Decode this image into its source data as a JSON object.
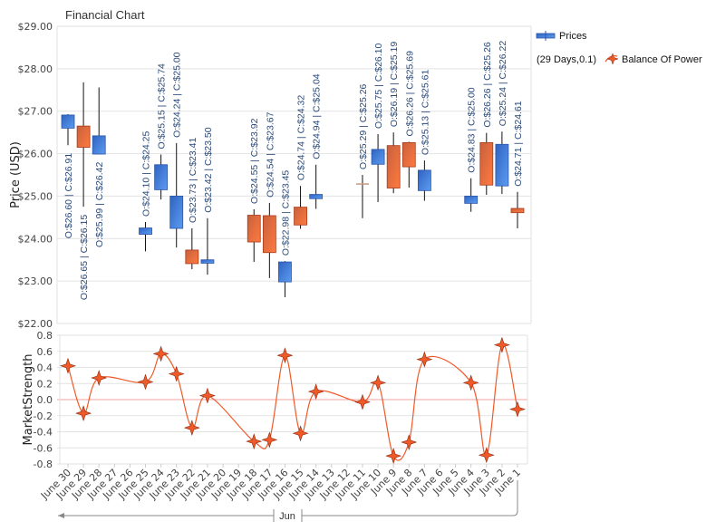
{
  "chart_data": [
    {
      "type": "candlestick",
      "title": "Financial Chart",
      "ylabel": "Price (USD)",
      "ylim": [
        22,
        29
      ],
      "yticks": [
        "$22.00",
        "$23.00",
        "$24.00",
        "$25.00",
        "$26.00",
        "$27.00",
        "$28.00",
        "$29.00"
      ],
      "grid": true,
      "legend_placement": "right",
      "series": [
        {
          "name": "Prices"
        }
      ],
      "colors": {
        "up": "#3a78d8",
        "down": "#e8602e",
        "doji": "#c89880"
      },
      "candles": [
        {
          "date": "June 30",
          "open": 26.6,
          "high": 26.93,
          "low": 26.2,
          "close": 26.91,
          "label": "O:$26.60 | C:$26.91"
        },
        {
          "date": "June 29",
          "open": 26.65,
          "high": 27.68,
          "low": 24.75,
          "close": 26.15,
          "label": "O:$26.65 | C:$26.15"
        },
        {
          "date": "June 28",
          "open": 25.99,
          "high": 27.56,
          "low": 25.99,
          "close": 26.42,
          "label": "O:$25.99 | C:$26.42"
        },
        {
          "date": "June 25",
          "open": 24.1,
          "high": 24.39,
          "low": 23.7,
          "close": 24.25,
          "label": "O:$24.10 | C:$24.25"
        },
        {
          "date": "June 24",
          "open": 25.15,
          "high": 25.98,
          "low": 24.92,
          "close": 25.74,
          "label": "O:$25.15 | C:$25.74"
        },
        {
          "date": "June 23",
          "open": 24.24,
          "high": 26.25,
          "low": 23.79,
          "close": 25.0,
          "label": "O:$24.24 | C:$25.00"
        },
        {
          "date": "June 22",
          "open": 23.73,
          "high": 24.24,
          "low": 23.28,
          "close": 23.41,
          "label": "O:$23.73 | C:$23.41"
        },
        {
          "date": "June 21",
          "open": 23.42,
          "high": 24.48,
          "low": 23.15,
          "close": 23.5,
          "label": "O:$23.42 | C:$23.50"
        },
        {
          "date": "June 18",
          "open": 24.55,
          "high": 24.69,
          "low": 23.45,
          "close": 23.92,
          "label": "O:$24.55 | C:$23.92"
        },
        {
          "date": "June 17",
          "open": 24.54,
          "high": 24.84,
          "low": 23.07,
          "close": 23.67,
          "label": "O:$24.54 | C:$23.67"
        },
        {
          "date": "June 16",
          "open": 22.98,
          "high": 23.47,
          "low": 22.62,
          "close": 23.45,
          "label": "O:$22.98 | C:$23.45"
        },
        {
          "date": "June 15",
          "open": 24.74,
          "high": 25.24,
          "low": 24.23,
          "close": 24.32,
          "label": "O:$24.74 | C:$24.32"
        },
        {
          "date": "June 14",
          "open": 24.94,
          "high": 25.74,
          "low": 24.7,
          "close": 25.04,
          "label": "O:$24.94 | C:$25.04"
        },
        {
          "date": "June 11",
          "open": 25.29,
          "high": 25.5,
          "low": 24.48,
          "close": 25.26,
          "label": "O:$25.29 | C:$25.26"
        },
        {
          "date": "June 10",
          "open": 25.75,
          "high": 26.46,
          "low": 24.86,
          "close": 26.1,
          "label": "O:$25.75 | C:$26.10"
        },
        {
          "date": "June 9",
          "open": 26.19,
          "high": 26.5,
          "low": 25.07,
          "close": 25.19,
          "label": "O:$26.19 | C:$25.19"
        },
        {
          "date": "June 8",
          "open": 26.26,
          "high": 26.28,
          "low": 25.2,
          "close": 25.69,
          "label": "O:$26.26 | C:$25.69"
        },
        {
          "date": "June 7",
          "open": 25.13,
          "high": 25.84,
          "low": 24.89,
          "close": 25.61,
          "label": "O:$25.13 | C:$25.61"
        },
        {
          "date": "June 4",
          "open": 24.83,
          "high": 25.42,
          "low": 24.63,
          "close": 25.0,
          "label": "O:$24.83 | C:$25.00"
        },
        {
          "date": "June 3",
          "open": 26.26,
          "high": 26.49,
          "low": 25.03,
          "close": 25.26,
          "label": "O:$26.26 | C:$25.26"
        },
        {
          "date": "June 2",
          "open": 25.24,
          "high": 26.52,
          "low": 25.05,
          "close": 26.22,
          "label": "O:$25.24 | C:$26.22"
        },
        {
          "date": "June 1",
          "open": 24.71,
          "high": 25.1,
          "low": 24.24,
          "close": 24.61,
          "label": "O:$24.71 | C:$24.61"
        }
      ]
    },
    {
      "type": "line",
      "ylabel": "MarketStrength",
      "ylim": [
        -0.8,
        0.8
      ],
      "yticks": [
        "-0.8",
        "-0.6",
        "-0.4",
        "-0.2",
        "0.0",
        "0.2",
        "0.4",
        "0.6",
        "0.8"
      ],
      "grid": true,
      "series": [
        {
          "name": "Balance Of Power",
          "legend_prefix": "(29 Days,0.1)",
          "color": "#f05a28",
          "marker": "four-point-star",
          "points": [
            {
              "date": "June 30",
              "value": 0.42
            },
            {
              "date": "June 29",
              "value": -0.17
            },
            {
              "date": "June 28",
              "value": 0.27
            },
            {
              "date": "June 25",
              "value": 0.22
            },
            {
              "date": "June 24",
              "value": 0.57
            },
            {
              "date": "June 23",
              "value": 0.32
            },
            {
              "date": "June 22",
              "value": -0.35
            },
            {
              "date": "June 21",
              "value": 0.05
            },
            {
              "date": "June 18",
              "value": -0.52
            },
            {
              "date": "June 17",
              "value": -0.5
            },
            {
              "date": "June 16",
              "value": 0.55
            },
            {
              "date": "June 15",
              "value": -0.42
            },
            {
              "date": "June 14",
              "value": 0.1
            },
            {
              "date": "June 11",
              "value": -0.03
            },
            {
              "date": "June 10",
              "value": 0.21
            },
            {
              "date": "June 9",
              "value": -0.7
            },
            {
              "date": "June 8",
              "value": -0.53
            },
            {
              "date": "June 7",
              "value": 0.5
            },
            {
              "date": "June 4",
              "value": 0.21
            },
            {
              "date": "June 3",
              "value": -0.69
            },
            {
              "date": "June 2",
              "value": 0.68
            },
            {
              "date": "June 1",
              "value": -0.12
            }
          ]
        }
      ],
      "zero_line_color": "#f0a0a0"
    }
  ],
  "x_axis": {
    "categories": [
      "June 30",
      "June 29",
      "June 28",
      "June 27",
      "June 26",
      "June 25",
      "June 24",
      "June 23",
      "June 22",
      "June 21",
      "June 20",
      "June 19",
      "June 18",
      "June 17",
      "June 16",
      "June 15",
      "June 14",
      "June 13",
      "June 12",
      "June 11",
      "June 10",
      "June 9",
      "June 8",
      "June 7",
      "June 6",
      "June 5",
      "June 4",
      "June 3",
      "June 2",
      "June 1"
    ],
    "group_label": "Jun"
  }
}
